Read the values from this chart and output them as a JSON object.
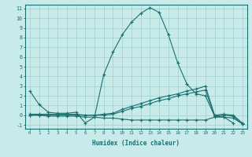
{
  "xlabel": "Humidex (Indice chaleur)",
  "bg_color": "#c8eae8",
  "line_color": "#1a7070",
  "grid_color": "#9dcece",
  "xlim": [
    -0.5,
    23.5
  ],
  "ylim": [
    -1.4,
    11.4
  ],
  "xticks": [
    0,
    1,
    2,
    3,
    4,
    5,
    6,
    7,
    8,
    9,
    10,
    11,
    12,
    13,
    14,
    15,
    16,
    17,
    18,
    19,
    20,
    21,
    22,
    23
  ],
  "yticks": [
    -1,
    0,
    1,
    2,
    3,
    4,
    5,
    6,
    7,
    8,
    9,
    10,
    11
  ],
  "line1_x": [
    0,
    1,
    2,
    3,
    4,
    5,
    6,
    7,
    8,
    9,
    10,
    11,
    12,
    13,
    14,
    15,
    16,
    17,
    18,
    19,
    20,
    21,
    22
  ],
  "line1_y": [
    2.5,
    1.1,
    0.3,
    0.2,
    0.2,
    0.3,
    -0.8,
    -0.2,
    4.2,
    6.5,
    8.3,
    9.6,
    10.5,
    11.1,
    10.6,
    8.3,
    5.4,
    3.2,
    2.2,
    2.0,
    -0.1,
    -0.2,
    -0.8
  ],
  "line2_x": [
    0,
    1,
    2,
    3,
    4,
    5,
    6,
    7,
    8,
    9,
    10,
    11,
    12,
    13,
    14,
    15,
    16,
    17,
    18,
    19,
    20,
    21,
    22,
    23
  ],
  "line2_y": [
    0.1,
    0.1,
    0.1,
    0.1,
    0.1,
    0.1,
    0.0,
    0.0,
    0.1,
    0.2,
    0.6,
    0.9,
    1.2,
    1.5,
    1.8,
    2.0,
    2.2,
    2.5,
    2.7,
    3.0,
    0.0,
    0.1,
    0.0,
    -0.8
  ],
  "line3_x": [
    0,
    1,
    2,
    3,
    4,
    5,
    6,
    7,
    8,
    9,
    10,
    11,
    12,
    13,
    14,
    15,
    16,
    17,
    18,
    19,
    20,
    21,
    22,
    23
  ],
  "line3_y": [
    0.0,
    0.0,
    0.0,
    0.0,
    0.0,
    0.0,
    0.0,
    0.0,
    0.0,
    0.1,
    0.4,
    0.7,
    0.9,
    1.2,
    1.5,
    1.7,
    2.0,
    2.2,
    2.4,
    2.6,
    -0.1,
    0.0,
    -0.1,
    -0.9
  ],
  "line4_x": [
    0,
    1,
    2,
    3,
    4,
    5,
    6,
    7,
    8,
    9,
    10,
    11,
    12,
    13,
    14,
    15,
    16,
    17,
    18,
    19,
    20,
    21,
    22,
    23
  ],
  "line4_y": [
    0.0,
    0.0,
    -0.1,
    -0.1,
    -0.1,
    -0.1,
    -0.2,
    -0.2,
    -0.3,
    -0.3,
    -0.4,
    -0.5,
    -0.5,
    -0.5,
    -0.5,
    -0.5,
    -0.5,
    -0.5,
    -0.5,
    -0.5,
    -0.2,
    -0.2,
    -0.3,
    -0.9
  ]
}
